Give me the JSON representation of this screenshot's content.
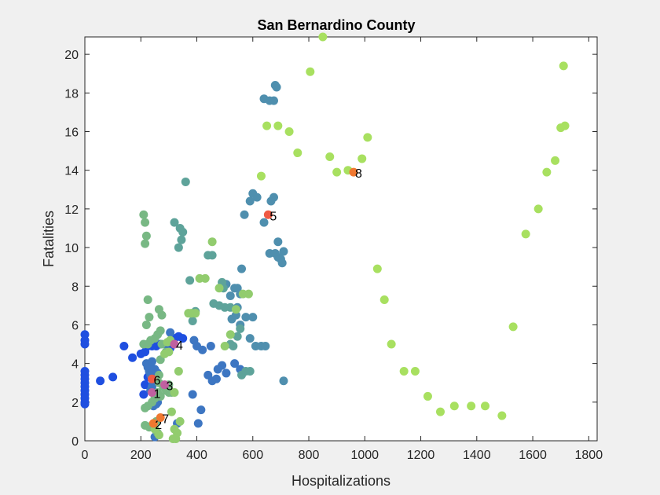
{
  "chart_data": {
    "type": "scatter",
    "title": "San Bernardino County",
    "xlabel": "Hospitalizations",
    "ylabel": "Fatalities",
    "xlim": [
      0,
      1830
    ],
    "ylim": [
      0,
      20.9
    ],
    "xticks": [
      0,
      200,
      400,
      600,
      800,
      1000,
      1200,
      1400,
      1600,
      1800
    ],
    "yticks": [
      0,
      2,
      4,
      6,
      8,
      10,
      12,
      14,
      16,
      18,
      20
    ],
    "grid": false,
    "legend": "none",
    "colors": {
      "blue": "#1f4fe0",
      "midblue": "#3d76c2",
      "steel": "#4f8fae",
      "teal": "#5ea39a",
      "sage": "#78b884",
      "green": "#92cc6e",
      "lime": "#a8e060",
      "red": "#ef5a44",
      "orange": "#f07830",
      "magenta": "#c060a0"
    },
    "groups": [
      {
        "color": "blue",
        "points": [
          [
            0,
            5.5
          ],
          [
            0,
            5.2
          ],
          [
            0,
            5.0
          ],
          [
            0,
            3.6
          ],
          [
            0,
            3.4
          ],
          [
            0,
            3.2
          ],
          [
            0,
            3.0
          ],
          [
            0,
            2.8
          ],
          [
            0,
            2.6
          ],
          [
            0,
            2.4
          ],
          [
            0,
            2.2
          ],
          [
            0,
            2.0
          ],
          [
            0,
            1.9
          ],
          [
            55,
            3.1
          ],
          [
            100,
            3.3
          ],
          [
            140,
            4.9
          ],
          [
            170,
            4.3
          ],
          [
            200,
            4.5
          ],
          [
            215,
            4.6
          ],
          [
            225,
            4.9
          ],
          [
            240,
            4.9
          ],
          [
            255,
            4.9
          ],
          [
            270,
            5.0
          ],
          [
            290,
            5.0
          ],
          [
            305,
            4.8
          ],
          [
            320,
            5.3
          ],
          [
            335,
            5.4
          ],
          [
            350,
            5.3
          ],
          [
            210,
            2.4
          ],
          [
            215,
            2.9
          ],
          [
            225,
            3.3
          ],
          [
            235,
            2.6
          ]
        ]
      },
      {
        "color": "midblue",
        "points": [
          [
            220,
            4.0
          ],
          [
            225,
            3.8
          ],
          [
            230,
            3.6
          ],
          [
            235,
            3.4
          ],
          [
            240,
            3.2
          ],
          [
            245,
            3.0
          ],
          [
            240,
            2.8
          ],
          [
            235,
            2.6
          ],
          [
            250,
            2.4
          ],
          [
            255,
            2.2
          ],
          [
            260,
            2.0
          ],
          [
            245,
            1.8
          ],
          [
            255,
            1.9
          ],
          [
            230,
            3.9
          ],
          [
            250,
            3.7
          ],
          [
            260,
            3.5
          ],
          [
            240,
            4.1
          ],
          [
            250,
            0.2
          ],
          [
            330,
            0.9
          ],
          [
            405,
            0.9
          ],
          [
            415,
            1.6
          ],
          [
            385,
            2.4
          ],
          [
            440,
            3.4
          ],
          [
            455,
            3.1
          ],
          [
            470,
            3.2
          ],
          [
            490,
            3.9
          ],
          [
            475,
            3.7
          ],
          [
            505,
            3.5
          ],
          [
            535,
            4.0
          ],
          [
            555,
            3.7
          ],
          [
            390,
            5.2
          ],
          [
            400,
            4.9
          ],
          [
            420,
            4.7
          ],
          [
            450,
            4.9
          ],
          [
            305,
            5.6
          ]
        ]
      },
      {
        "color": "steel",
        "points": [
          [
            505,
            8.1
          ],
          [
            520,
            7.5
          ],
          [
            535,
            7.9
          ],
          [
            545,
            7.9
          ],
          [
            555,
            7.6
          ],
          [
            560,
            8.9
          ],
          [
            525,
            6.3
          ],
          [
            540,
            6.5
          ],
          [
            555,
            6.0
          ],
          [
            545,
            6.9
          ],
          [
            575,
            6.4
          ],
          [
            600,
            6.4
          ],
          [
            590,
            5.3
          ],
          [
            610,
            4.9
          ],
          [
            630,
            4.9
          ],
          [
            645,
            4.9
          ],
          [
            640,
            11.3
          ],
          [
            665,
            12.4
          ],
          [
            675,
            12.6
          ],
          [
            590,
            12.4
          ],
          [
            600,
            12.8
          ],
          [
            615,
            12.6
          ],
          [
            570,
            11.7
          ],
          [
            640,
            17.7
          ],
          [
            660,
            17.6
          ],
          [
            675,
            17.6
          ],
          [
            680,
            18.4
          ],
          [
            685,
            18.3
          ],
          [
            660,
            9.7
          ],
          [
            680,
            9.7
          ],
          [
            690,
            9.5
          ],
          [
            700,
            9.4
          ],
          [
            710,
            9.8
          ],
          [
            705,
            9.2
          ],
          [
            690,
            10.3
          ],
          [
            710,
            3.1
          ]
        ]
      },
      {
        "color": "teal",
        "points": [
          [
            360,
            13.4
          ],
          [
            320,
            11.3
          ],
          [
            340,
            11.0
          ],
          [
            350,
            10.8
          ],
          [
            345,
            10.4
          ],
          [
            335,
            10.0
          ],
          [
            440,
            9.6
          ],
          [
            455,
            9.6
          ],
          [
            375,
            8.3
          ],
          [
            395,
            6.7
          ],
          [
            385,
            6.2
          ],
          [
            460,
            7.1
          ],
          [
            480,
            7.0
          ],
          [
            500,
            6.9
          ],
          [
            520,
            6.9
          ],
          [
            530,
            4.9
          ],
          [
            545,
            5.4
          ],
          [
            555,
            5.8
          ],
          [
            560,
            3.4
          ],
          [
            575,
            3.6
          ],
          [
            590,
            3.6
          ],
          [
            490,
            8.2
          ],
          [
            495,
            7.9
          ],
          [
            520,
            5.0
          ]
        ]
      },
      {
        "color": "sage",
        "points": [
          [
            210,
            11.7
          ],
          [
            215,
            11.3
          ],
          [
            220,
            10.6
          ],
          [
            215,
            10.2
          ],
          [
            225,
            7.3
          ],
          [
            220,
            6.0
          ],
          [
            230,
            6.4
          ],
          [
            235,
            5.2
          ],
          [
            250,
            5.3
          ],
          [
            260,
            5.5
          ],
          [
            265,
            6.8
          ],
          [
            275,
            6.5
          ],
          [
            270,
            5.7
          ],
          [
            275,
            5.0
          ],
          [
            290,
            4.6
          ],
          [
            270,
            4.2
          ],
          [
            265,
            3.4
          ],
          [
            265,
            3.0
          ],
          [
            280,
            2.8
          ],
          [
            290,
            2.6
          ],
          [
            300,
            2.5
          ],
          [
            310,
            2.5
          ],
          [
            260,
            2.5
          ],
          [
            270,
            2.3
          ],
          [
            215,
            1.7
          ],
          [
            225,
            1.8
          ],
          [
            240,
            2.0
          ],
          [
            250,
            2.2
          ],
          [
            215,
            0.8
          ],
          [
            230,
            0.7
          ],
          [
            240,
            0.8
          ],
          [
            255,
            1.0
          ],
          [
            260,
            0.4
          ],
          [
            225,
            5.0
          ],
          [
            210,
            5.0
          ],
          [
            300,
            2.9
          ]
        ]
      },
      {
        "color": "green",
        "points": [
          [
            285,
            4.5
          ],
          [
            300,
            4.6
          ],
          [
            295,
            5.1
          ],
          [
            305,
            5.2
          ],
          [
            335,
            3.6
          ],
          [
            370,
            6.6
          ],
          [
            380,
            6.6
          ],
          [
            395,
            6.6
          ],
          [
            410,
            8.4
          ],
          [
            430,
            8.4
          ],
          [
            455,
            10.3
          ],
          [
            480,
            7.9
          ],
          [
            500,
            4.9
          ],
          [
            520,
            5.5
          ],
          [
            565,
            7.6
          ],
          [
            585,
            7.6
          ],
          [
            540,
            6.8
          ],
          [
            320,
            2.5
          ],
          [
            310,
            1.5
          ],
          [
            320,
            0.6
          ],
          [
            330,
            0.4
          ],
          [
            325,
            0.1
          ],
          [
            340,
            1.0
          ],
          [
            250,
            0.6
          ],
          [
            265,
            0.3
          ],
          [
            315,
            0.1
          ]
        ]
      },
      {
        "color": "lime",
        "points": [
          [
            850,
            20.9
          ],
          [
            805,
            19.1
          ],
          [
            650,
            16.3
          ],
          [
            690,
            16.3
          ],
          [
            730,
            16.0
          ],
          [
            760,
            14.9
          ],
          [
            875,
            14.7
          ],
          [
            900,
            13.9
          ],
          [
            940,
            14.0
          ],
          [
            990,
            14.6
          ],
          [
            1010,
            15.7
          ],
          [
            630,
            13.7
          ],
          [
            1045,
            8.9
          ],
          [
            1070,
            7.3
          ],
          [
            1095,
            5.0
          ],
          [
            1140,
            3.6
          ],
          [
            1180,
            3.6
          ],
          [
            1225,
            2.3
          ],
          [
            1270,
            1.5
          ],
          [
            1320,
            1.8
          ],
          [
            1380,
            1.8
          ],
          [
            1430,
            1.8
          ],
          [
            1490,
            1.3
          ],
          [
            1530,
            5.9
          ],
          [
            1575,
            10.7
          ],
          [
            1620,
            12.0
          ],
          [
            1650,
            13.9
          ],
          [
            1680,
            14.5
          ],
          [
            1700,
            16.2
          ],
          [
            1715,
            16.3
          ],
          [
            1710,
            19.4
          ]
        ]
      }
    ],
    "highlights": [
      {
        "label": "1",
        "x": 240,
        "y": 2.5,
        "color": "magenta"
      },
      {
        "label": "2",
        "x": 245,
        "y": 0.9,
        "color": "orange"
      },
      {
        "label": "3",
        "x": 285,
        "y": 2.9,
        "color": "magenta"
      },
      {
        "label": "4",
        "x": 320,
        "y": 5.0,
        "color": "magenta"
      },
      {
        "label": "5",
        "x": 655,
        "y": 11.7,
        "color": "red"
      },
      {
        "label": "6",
        "x": 240,
        "y": 3.2,
        "color": "red"
      },
      {
        "label": "7",
        "x": 270,
        "y": 1.2,
        "color": "orange"
      },
      {
        "label": "8",
        "x": 960,
        "y": 13.9,
        "color": "orange"
      }
    ]
  }
}
